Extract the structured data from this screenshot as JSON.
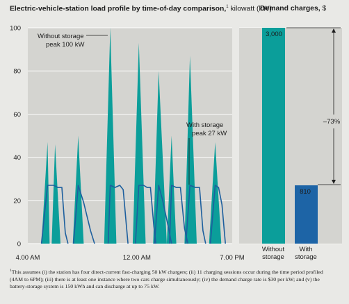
{
  "chart_data": [
    {
      "type": "area",
      "title": "Electric-vehicle-station load profile by time-of-day comparison,",
      "footnote_ref": "1",
      "unit": "kilowatt (kW)",
      "ylim": [
        0,
        100
      ],
      "yticks": [
        "0",
        "20",
        "40",
        "60",
        "80",
        "100"
      ],
      "xticks": [
        {
          "label": "4.00 AM",
          "hour": 4
        },
        {
          "label": "12.00 AM",
          "hour": 12
        },
        {
          "label": "7.00 PM",
          "hour": 19
        }
      ],
      "xlim": [
        4,
        19
      ],
      "grid": true,
      "series": [
        {
          "name": "Without storage",
          "style": "filled",
          "color": "#0b9e9a",
          "points": [
            [
              5.0,
              0
            ],
            [
              5.45,
              47
            ],
            [
              5.6,
              0
            ],
            [
              5.75,
              0
            ],
            [
              6.0,
              46
            ],
            [
              6.4,
              0
            ],
            [
              7.3,
              0
            ],
            [
              7.7,
              50
            ],
            [
              8.1,
              0
            ],
            [
              9.6,
              0
            ],
            [
              10.05,
              100
            ],
            [
              10.5,
              0
            ],
            [
              11.7,
              0
            ],
            [
              12.15,
              93
            ],
            [
              12.65,
              0
            ],
            [
              13.2,
              0
            ],
            [
              13.6,
              80
            ],
            [
              14.2,
              0
            ],
            [
              14.2,
              0
            ],
            [
              14.55,
              50
            ],
            [
              14.9,
              0
            ],
            [
              15.5,
              0
            ],
            [
              15.9,
              87
            ],
            [
              16.4,
              0
            ],
            [
              17.3,
              0
            ],
            [
              17.75,
              47
            ],
            [
              18.2,
              0
            ]
          ]
        },
        {
          "name": "With storage",
          "style": "line",
          "color": "#1d5f9e",
          "points": [
            [
              5.0,
              0
            ],
            [
              5.45,
              27
            ],
            [
              5.9,
              27
            ],
            [
              6.2,
              26
            ],
            [
              6.5,
              26
            ],
            [
              6.75,
              5
            ],
            [
              6.95,
              0
            ],
            [
              7.35,
              0
            ],
            [
              7.7,
              27
            ],
            [
              8.1,
              19
            ],
            [
              8.6,
              6
            ],
            [
              8.9,
              0
            ],
            [
              9.9,
              0
            ],
            [
              10.05,
              27
            ],
            [
              10.4,
              26
            ],
            [
              10.75,
              27
            ],
            [
              11.0,
              25
            ],
            [
              11.35,
              0
            ],
            [
              11.9,
              0
            ],
            [
              12.15,
              27
            ],
            [
              12.5,
              27
            ],
            [
              12.75,
              26
            ],
            [
              13.0,
              26
            ],
            [
              13.25,
              8
            ],
            [
              13.4,
              0
            ],
            [
              13.3,
              0
            ],
            [
              13.6,
              27
            ],
            [
              13.9,
              20
            ],
            [
              14.3,
              8
            ],
            [
              14.55,
              0
            ],
            [
              14.4,
              0
            ],
            [
              14.55,
              27
            ],
            [
              14.9,
              26
            ],
            [
              15.2,
              26
            ],
            [
              15.5,
              7
            ],
            [
              15.75,
              0
            ],
            [
              15.6,
              0
            ],
            [
              15.9,
              27
            ],
            [
              16.3,
              26
            ],
            [
              16.6,
              26
            ],
            [
              16.85,
              6
            ],
            [
              17.05,
              0
            ],
            [
              17.4,
              0
            ],
            [
              17.75,
              27
            ],
            [
              18.0,
              26
            ],
            [
              18.25,
              18
            ],
            [
              18.5,
              0
            ]
          ]
        }
      ],
      "annotations": [
        {
          "line1": "Without storage",
          "line2": "peak 100 kW"
        },
        {
          "line1": "With storage",
          "line2": "peak 27 kW"
        }
      ]
    },
    {
      "type": "bar",
      "title": "Demand charges,",
      "unit": "$",
      "categories": [
        "Without storage",
        "With storage"
      ],
      "category_lines": [
        [
          "Without",
          "storage"
        ],
        [
          "With",
          "storage"
        ]
      ],
      "values": [
        3000,
        810
      ],
      "value_labels": [
        "3,000",
        "810"
      ],
      "colors": [
        "#0b9e9a",
        "#1d64a6"
      ],
      "ylim": [
        0,
        3000
      ],
      "change_label": "–73%"
    }
  ],
  "footnote": {
    "marker": "1",
    "line1": "This assumes (i) the station has four direct-current fast-charging 50 kW chargers; (ii) 11 charging sessions occur during the time period profiled",
    "line2": "(4AM to 6PM); (iii) there is at least one instance where two cars charge simultaneously; (iv) the demand charge rate is $30 per kW; and (v) the",
    "line3": "battery-storage system is 150 kWh and can discharge at up to 75 kW."
  }
}
